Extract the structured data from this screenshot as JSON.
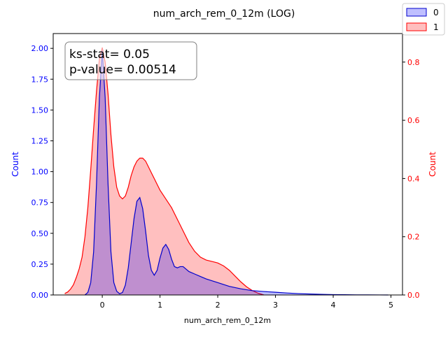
{
  "chart_data": {
    "type": "area",
    "title": "num_arch_rem_0_12m (LOG)",
    "xlabel": "num_arch_rem_0_12m",
    "ylabel_left": "Count",
    "ylabel_right": "Count",
    "xlim": [
      -0.85,
      5.2
    ],
    "ylim_left": [
      0,
      2.12
    ],
    "ylim_right": [
      0,
      0.898
    ],
    "xticks": [
      0,
      1,
      2,
      3,
      4,
      5
    ],
    "yticks_left": [
      "0.00",
      "0.25",
      "0.50",
      "0.75",
      "1.00",
      "1.25",
      "1.50",
      "1.75",
      "2.00"
    ],
    "yticks_left_values": [
      0,
      0.25,
      0.5,
      0.75,
      1.0,
      1.25,
      1.5,
      1.75,
      2.0
    ],
    "yticks_right": [
      "0.0",
      "0.2",
      "0.4",
      "0.6",
      "0.8"
    ],
    "yticks_right_values": [
      0,
      0.2,
      0.4,
      0.6,
      0.8
    ],
    "grid": false,
    "legend_placement": "top-right",
    "annotation": {
      "line1": "ks-stat= 0.05",
      "line2": "p-value= 0.00514"
    },
    "series": [
      {
        "name": "0",
        "axis": "left",
        "color": "#0000cc",
        "fill": "#0000ff",
        "x": [
          -0.3,
          -0.25,
          -0.2,
          -0.15,
          -0.1,
          -0.05,
          0.0,
          0.05,
          0.1,
          0.15,
          0.2,
          0.25,
          0.3,
          0.35,
          0.4,
          0.45,
          0.5,
          0.55,
          0.6,
          0.65,
          0.7,
          0.75,
          0.8,
          0.85,
          0.9,
          0.95,
          1.0,
          1.05,
          1.1,
          1.15,
          1.2,
          1.25,
          1.3,
          1.35,
          1.4,
          1.45,
          1.5,
          1.6,
          1.7,
          1.8,
          2.0,
          2.2,
          2.4,
          2.6,
          2.8,
          3.0,
          3.2,
          3.4,
          3.6,
          3.8,
          4.0,
          4.2,
          4.4,
          4.6,
          4.8,
          4.95
        ],
        "y": [
          0.0,
          0.02,
          0.1,
          0.35,
          0.9,
          1.6,
          1.98,
          1.6,
          0.9,
          0.35,
          0.1,
          0.03,
          0.01,
          0.02,
          0.08,
          0.22,
          0.42,
          0.62,
          0.76,
          0.79,
          0.7,
          0.52,
          0.32,
          0.2,
          0.16,
          0.2,
          0.3,
          0.38,
          0.41,
          0.37,
          0.29,
          0.23,
          0.22,
          0.23,
          0.23,
          0.21,
          0.19,
          0.17,
          0.15,
          0.13,
          0.1,
          0.07,
          0.05,
          0.035,
          0.028,
          0.022,
          0.016,
          0.011,
          0.008,
          0.005,
          0.003,
          0.002,
          0.0012,
          0.0006,
          0.0002,
          0.0
        ]
      },
      {
        "name": "1",
        "axis": "right",
        "color": "#ff0000",
        "fill": "#ff0000",
        "x": [
          -0.65,
          -0.6,
          -0.55,
          -0.5,
          -0.45,
          -0.4,
          -0.35,
          -0.3,
          -0.25,
          -0.2,
          -0.15,
          -0.1,
          -0.05,
          0.0,
          0.05,
          0.1,
          0.15,
          0.2,
          0.25,
          0.3,
          0.35,
          0.4,
          0.45,
          0.5,
          0.55,
          0.6,
          0.65,
          0.7,
          0.75,
          0.8,
          0.85,
          0.9,
          0.95,
          1.0,
          1.1,
          1.2,
          1.3,
          1.4,
          1.5,
          1.6,
          1.7,
          1.8,
          1.9,
          2.0,
          2.1,
          2.2,
          2.3,
          2.4,
          2.5,
          2.6,
          2.7,
          2.8
        ],
        "y": [
          0.005,
          0.01,
          0.02,
          0.035,
          0.06,
          0.09,
          0.13,
          0.2,
          0.3,
          0.43,
          0.57,
          0.7,
          0.81,
          0.85,
          0.8,
          0.69,
          0.55,
          0.44,
          0.37,
          0.34,
          0.33,
          0.34,
          0.37,
          0.41,
          0.44,
          0.46,
          0.47,
          0.47,
          0.46,
          0.44,
          0.42,
          0.4,
          0.38,
          0.36,
          0.33,
          0.3,
          0.26,
          0.22,
          0.18,
          0.15,
          0.13,
          0.12,
          0.115,
          0.11,
          0.1,
          0.085,
          0.065,
          0.045,
          0.028,
          0.015,
          0.006,
          0.0
        ]
      }
    ]
  }
}
